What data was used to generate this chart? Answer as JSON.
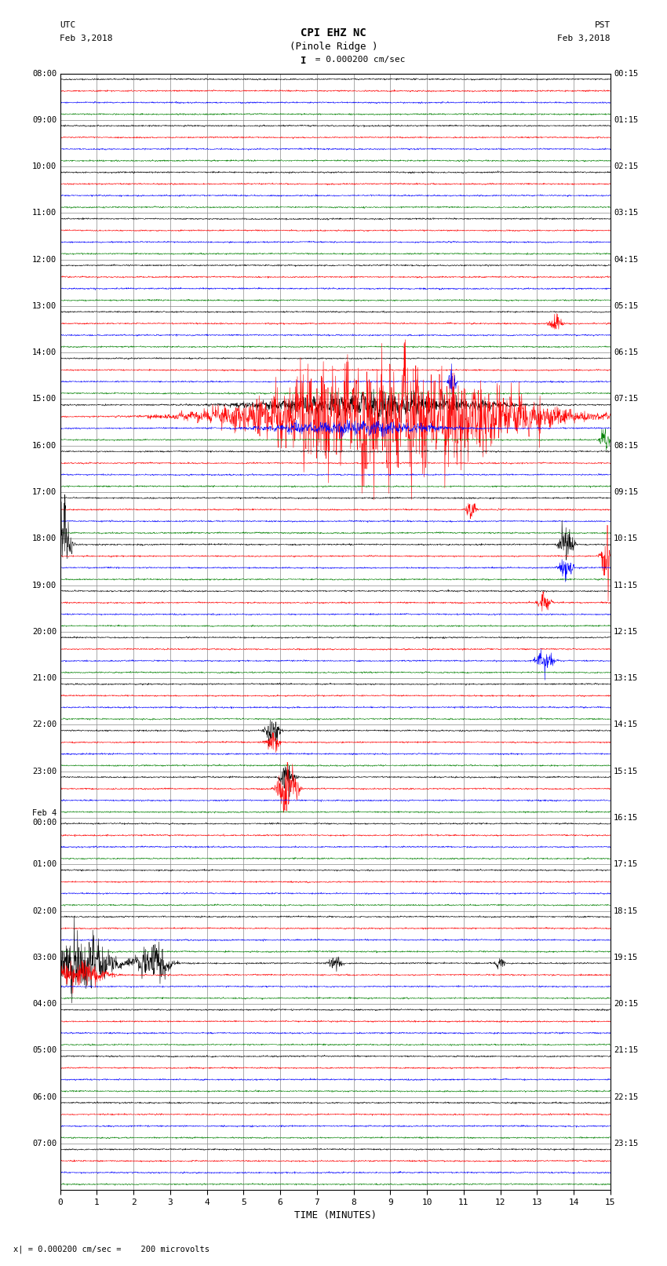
{
  "title_line1": "CPI EHZ NC",
  "title_line2": "(Pinole Ridge )",
  "scale_label": "= 0.000200 cm/sec",
  "utc_label": "UTC\nFeb 3,2018",
  "pst_label": "PST\nFeb 3,2018",
  "bottom_label": "x| = 0.000200 cm/sec =    200 microvolts",
  "xlabel": "TIME (MINUTES)",
  "left_times": [
    "08:00",
    "09:00",
    "10:00",
    "11:00",
    "12:00",
    "13:00",
    "14:00",
    "15:00",
    "16:00",
    "17:00",
    "18:00",
    "19:00",
    "20:00",
    "21:00",
    "22:00",
    "23:00",
    "Feb 4\n00:00",
    "01:00",
    "02:00",
    "03:00",
    "04:00",
    "05:00",
    "06:00",
    "07:00"
  ],
  "right_times": [
    "00:15",
    "01:15",
    "02:15",
    "03:15",
    "04:15",
    "05:15",
    "06:15",
    "07:15",
    "08:15",
    "09:15",
    "10:15",
    "11:15",
    "12:15",
    "13:15",
    "14:15",
    "15:15",
    "16:15",
    "17:15",
    "18:15",
    "19:15",
    "20:15",
    "21:15",
    "22:15",
    "23:15"
  ],
  "num_rows": 24,
  "traces_per_row": 4,
  "colors": [
    "black",
    "red",
    "blue",
    "green"
  ],
  "bg_color": "white",
  "noise_amplitude": 0.03,
  "xmin": 0,
  "xmax": 15,
  "xticks": [
    0,
    1,
    2,
    3,
    4,
    5,
    6,
    7,
    8,
    9,
    10,
    11,
    12,
    13,
    14,
    15
  ],
  "grid_color": "#888888",
  "figsize": [
    8.5,
    16.13
  ],
  "dpi": 100
}
